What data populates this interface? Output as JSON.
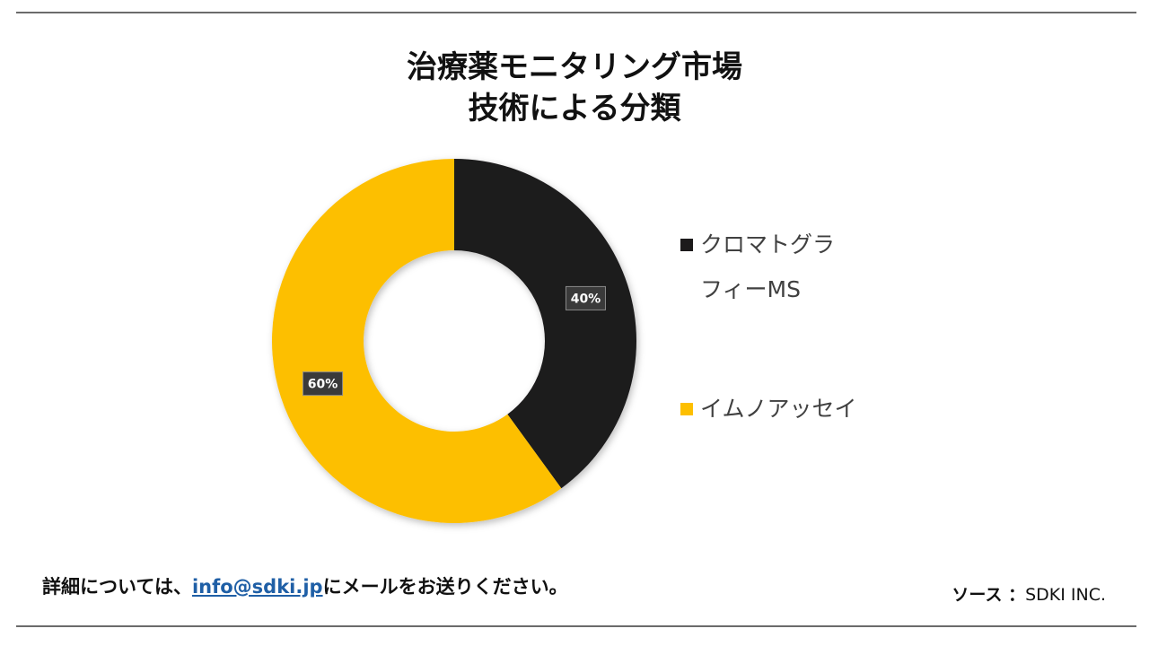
{
  "title": {
    "line1": "治療薬モニタリング市場",
    "line2": "技術による分類"
  },
  "chart_data": {
    "type": "pie",
    "style": "donut",
    "categories": [
      "クロマトグラフィーMS",
      "イムノアッセイ"
    ],
    "values": [
      40,
      60
    ],
    "labels": [
      "40%",
      "60%"
    ],
    "colors": [
      "#1c1a1b",
      "#fdbf00"
    ],
    "legend_placement": "right"
  },
  "legend": {
    "items": [
      {
        "lines": [
          "クロマトグラ",
          "フィーMS"
        ],
        "color": "#1c1a1b"
      },
      {
        "lines": [
          "イムノアッセイ"
        ],
        "color": "#fdbf00"
      }
    ]
  },
  "footer": {
    "contact_prefix": "詳細については、",
    "email": "info@sdki.jp",
    "contact_suffix": "にメールをお送りください。",
    "source_label": "ソース ：",
    "source_value": "SDKI INC."
  }
}
